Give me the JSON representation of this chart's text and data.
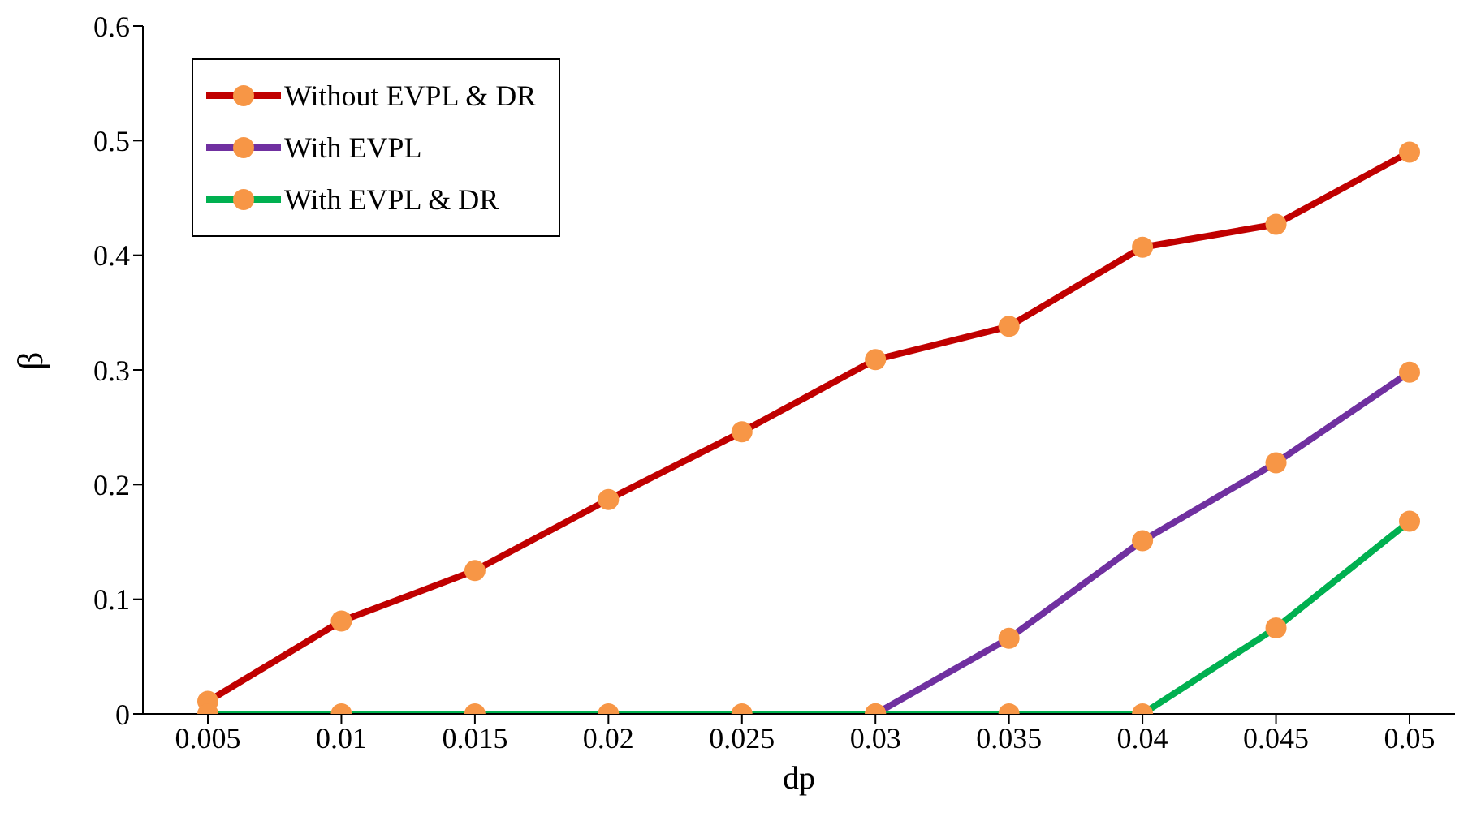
{
  "chart_data": {
    "type": "line",
    "xlabel": "dp",
    "ylabel": "β",
    "categories": [
      "0.005",
      "0.01",
      "0.015",
      "0.02",
      "0.025",
      "0.03",
      "0.035",
      "0.04",
      "0.045",
      "0.05"
    ],
    "series": [
      {
        "name": "Without EVPL & DR",
        "color": "#c00000",
        "values": [
          0.011,
          0.081,
          0.125,
          0.187,
          0.246,
          0.309,
          0.338,
          0.407,
          0.427,
          0.49
        ]
      },
      {
        "name": "With EVPL",
        "color": "#7030a0",
        "values": [
          null,
          null,
          null,
          null,
          null,
          0,
          0.066,
          0.151,
          0.219,
          0.298
        ]
      },
      {
        "name": "With EVPL & DR",
        "color": "#00b050",
        "values": [
          0,
          0,
          0,
          0,
          0,
          0,
          0,
          0,
          0.075,
          0.168
        ]
      }
    ],
    "ylim": [
      0,
      0.6
    ],
    "yticks": [
      0,
      0.1,
      0.2,
      0.3,
      0.4,
      0.5,
      0.6
    ],
    "grid": false,
    "legend": "top left",
    "marker": "circle",
    "line_style": "solid"
  }
}
